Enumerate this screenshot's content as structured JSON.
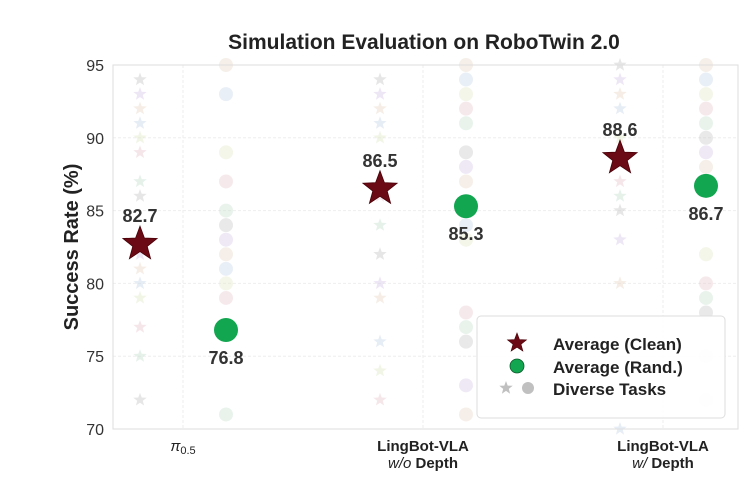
{
  "chart_data": {
    "type": "scatter",
    "title": "Simulation Evaluation on RoboTwin 2.0",
    "xlabel": "",
    "ylabel": "Success Rate (%)",
    "ylim": [
      70,
      95
    ],
    "yticks": [
      70,
      75,
      80,
      85,
      90,
      95
    ],
    "grid": true,
    "legend_position": "bottom-right",
    "categories": [
      {
        "line1": "π",
        "line1_sub": "0.5",
        "line2_italic": "",
        "line2": ""
      },
      {
        "line1": "LingBot-VLA",
        "line2_italic": "w/o",
        "line2": " Depth"
      },
      {
        "line1": "LingBot-VLA",
        "line2_italic": "w/",
        "line2": " Depth"
      }
    ],
    "series": [
      {
        "name": "Average (Clean)",
        "marker": "star",
        "color": "#6b0a14",
        "values": [
          82.7,
          86.5,
          88.6
        ],
        "labels": [
          "82.7",
          "86.5",
          "88.6"
        ]
      },
      {
        "name": "Average (Rand.)",
        "marker": "circle",
        "color": "#12a650",
        "values": [
          76.8,
          85.3,
          86.7
        ],
        "labels": [
          "76.8",
          "85.3",
          "86.7"
        ]
      }
    ],
    "diverse_tasks": {
      "name": "Diverse Tasks",
      "clean": [
        [
          94,
          93,
          92,
          91,
          90,
          89,
          87,
          86,
          82,
          81,
          80,
          79,
          77,
          75,
          72
        ],
        [
          94,
          93,
          92,
          91,
          90,
          86,
          84,
          82,
          80,
          79,
          76,
          74,
          72
        ],
        [
          95,
          94,
          93,
          92,
          90,
          87,
          86,
          85,
          83,
          80,
          70
        ]
      ],
      "rand": [
        [
          95,
          93,
          89,
          87,
          85,
          84,
          83,
          82,
          81,
          80,
          79,
          71
        ],
        [
          95,
          94,
          93,
          92,
          91,
          89,
          88,
          87,
          84,
          83,
          78,
          77,
          76,
          73,
          71
        ],
        [
          95,
          94,
          93,
          92,
          91,
          90,
          89,
          88,
          87,
          82,
          80,
          79,
          78,
          75,
          72
        ]
      ]
    }
  }
}
